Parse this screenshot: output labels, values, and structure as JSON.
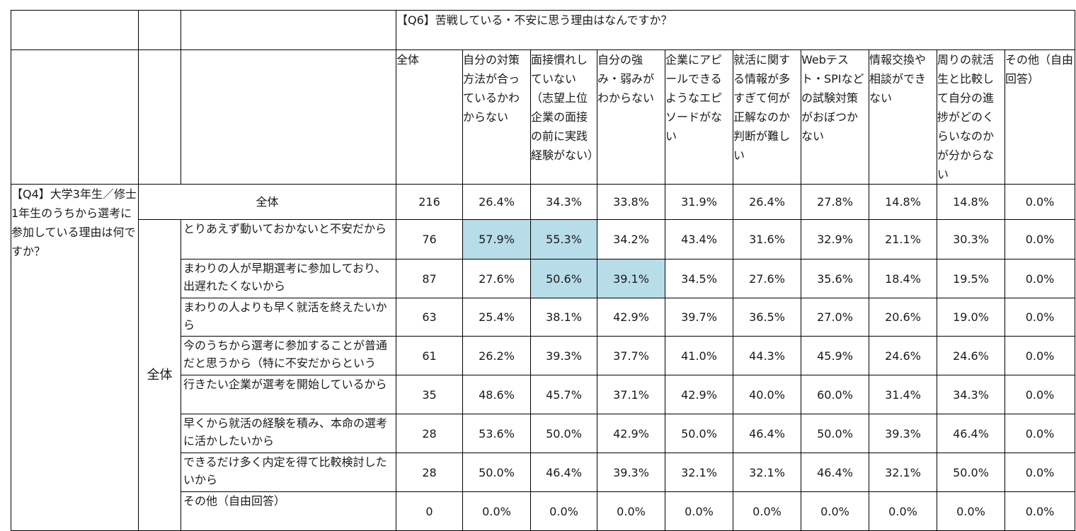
{
  "q6_title": "【Q6】苦戦している・不安に思う理由はなんですか？",
  "q4_title": "【Q4】大学3年生／修士1年生のうちから選考に参加している理由は何ですか？",
  "group_label": "全体",
  "total_label": "全体",
  "headers": [
    "全体",
    "自分の対策方法が合っているかわからない",
    "面接慣れしていない（志望上位企業の面接の前に実践経験がない）",
    "自分の強み・弱みがわからない",
    "企業にアピールできるようなエピソードがない",
    "就活に関する情報が多すぎて何が正解なのか判断が難しい",
    "Webテスト・SPIなどの試験対策がおぼつかない",
    "情報交換や相談ができない",
    "周りの就活生と比較して自分の進捗がどのくらいなのかが分からない",
    "その他（自由回答）"
  ],
  "total_row": [
    "216",
    "26.4%",
    "34.3%",
    "33.8%",
    "31.9%",
    "26.4%",
    "27.8%",
    "14.8%",
    "14.8%",
    "0.0%"
  ],
  "rows": [
    {
      "label": "とりあえず動いておかないと不安だから",
      "values": [
        "76",
        "57.9%",
        "55.3%",
        "34.2%",
        "43.4%",
        "31.6%",
        "32.9%",
        "21.1%",
        "30.3%",
        "0.0%"
      ]
    },
    {
      "label": "まわりの人が早期選考に参加しており、出遅れたくないから",
      "values": [
        "87",
        "27.6%",
        "50.6%",
        "39.1%",
        "34.5%",
        "27.6%",
        "35.6%",
        "18.4%",
        "19.5%",
        "0.0%"
      ]
    },
    {
      "label": "まわりの人よりも早く就活を終えたいから",
      "values": [
        "63",
        "25.4%",
        "38.1%",
        "42.9%",
        "39.7%",
        "36.5%",
        "27.0%",
        "20.6%",
        "19.0%",
        "0.0%"
      ]
    },
    {
      "label": "今のうちから選考に参加することが普通だと思うから（特に不安だからという",
      "values": [
        "61",
        "26.2%",
        "39.3%",
        "37.7%",
        "41.0%",
        "44.3%",
        "45.9%",
        "24.6%",
        "24.6%",
        "0.0%"
      ]
    },
    {
      "label": "行きたい企業が選考を開始しているから",
      "values": [
        "35",
        "48.6%",
        "45.7%",
        "37.1%",
        "42.9%",
        "40.0%",
        "60.0%",
        "31.4%",
        "34.3%",
        "0.0%"
      ]
    },
    {
      "label": "早くから就活の経験を積み、本命の選考に活かしたいから",
      "values": [
        "28",
        "53.6%",
        "50.0%",
        "42.9%",
        "50.0%",
        "46.4%",
        "50.0%",
        "39.3%",
        "46.4%",
        "0.0%"
      ]
    },
    {
      "label": "できるだけ多く内定を得て比較検討したいから",
      "values": [
        "28",
        "50.0%",
        "46.4%",
        "39.3%",
        "32.1%",
        "32.1%",
        "46.4%",
        "32.1%",
        "50.0%",
        "0.0%"
      ]
    },
    {
      "label": "その他（自由回答）",
      "values": [
        "0",
        "0.0%",
        "0.0%",
        "0.0%",
        "0.0%",
        "0.0%",
        "0.0%",
        "0.0%",
        "0.0%",
        "0.0%"
      ]
    }
  ],
  "highlight_color": "#b7dde8"
}
